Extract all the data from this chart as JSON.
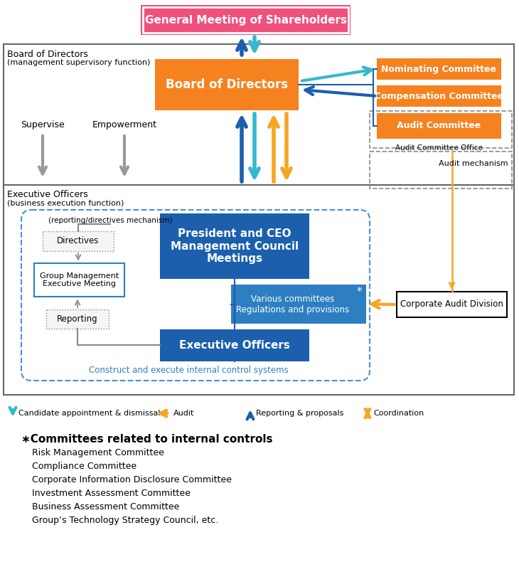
{
  "colors": {
    "orange": "#F5821F",
    "orange_arrow": "#F5A623",
    "blue_dark": "#1B5FAD",
    "blue_mid": "#2E7FC1",
    "cyan": "#35B8CE",
    "pink_red": "#F0507D",
    "gray": "#888888",
    "gray_arrow": "#999999",
    "black": "#000000",
    "white": "#FFFFFF",
    "box_bg": "#F8F8F8",
    "box_border": "#666666",
    "blue_line": "#1B5FAD"
  },
  "committees_title": "∗Committees related to internal controls",
  "committees_list": [
    "Risk Management Committee",
    "Compliance Committee",
    "Corporate Information Disclosure Committee",
    "Investment Assessment Committee",
    "Business Assessment Committee",
    "Group’s Technology Strategy Council, etc."
  ]
}
